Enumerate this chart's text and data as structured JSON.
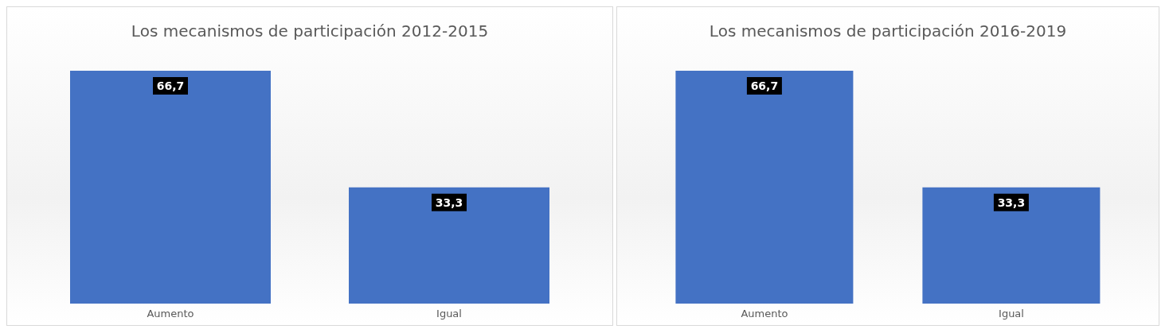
{
  "chart_data": [
    {
      "type": "bar",
      "title": "Los mecanismos de participación 2012-2015",
      "categories": [
        "Aumento",
        "Igual"
      ],
      "values": [
        66.7,
        33.3
      ],
      "value_labels": [
        "66,7",
        "33,3"
      ],
      "color": "#4472c4",
      "grid": false,
      "legend": false
    },
    {
      "type": "bar",
      "title": "Los mecanismos de participación 2016-2019",
      "categories": [
        "Aumento",
        "Igual"
      ],
      "values": [
        66.7,
        33.3
      ],
      "value_labels": [
        "66,7",
        "33,3"
      ],
      "color": "#4472c4",
      "grid": false,
      "legend": false
    }
  ]
}
